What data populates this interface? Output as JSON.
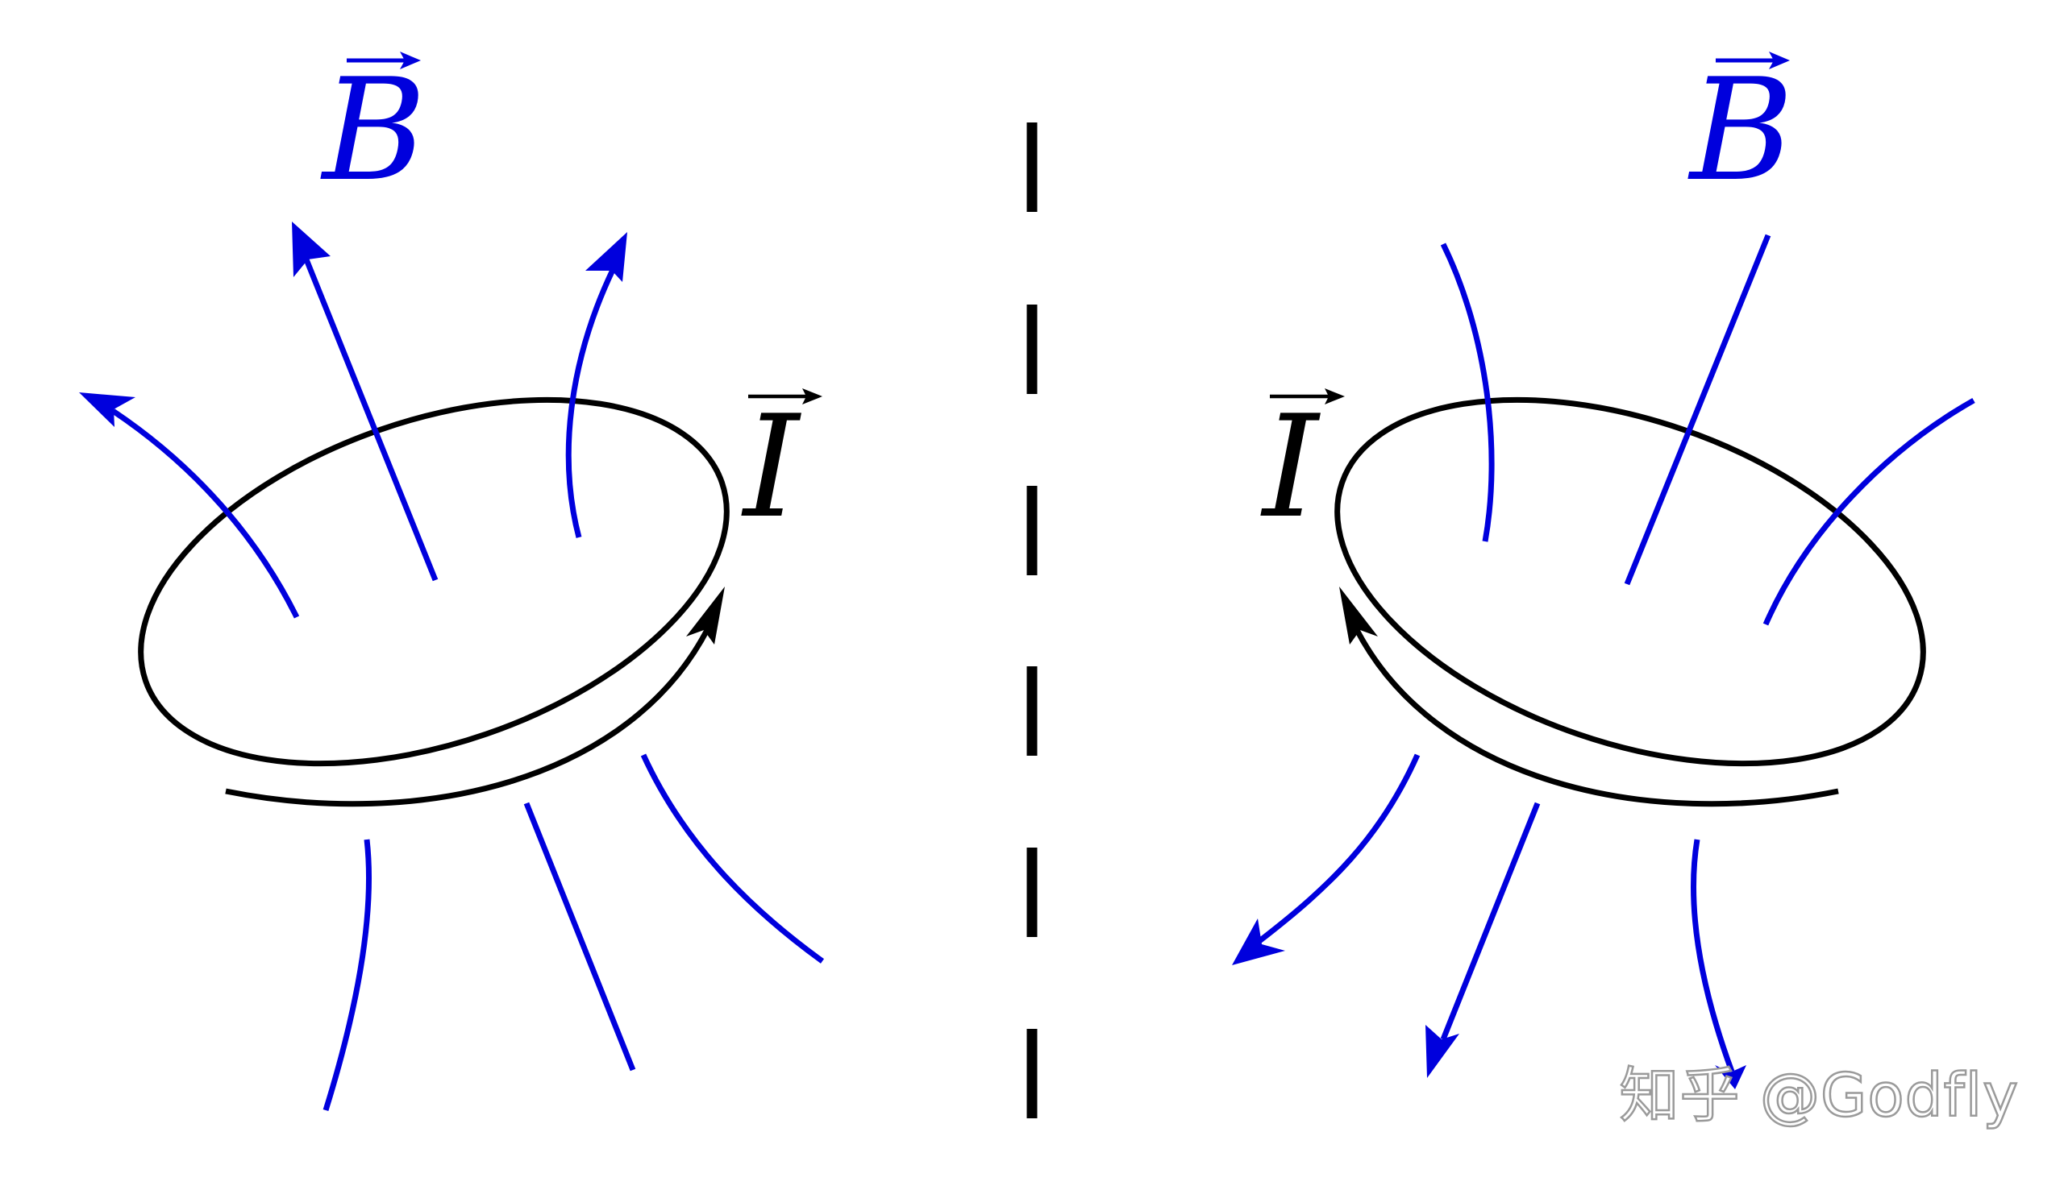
{
  "diagram": {
    "left_panel": {
      "field_label": "B",
      "current_label": "I"
    },
    "right_panel": {
      "field_label": "B",
      "current_label": "I"
    },
    "colors": {
      "field_lines": "#0000dd",
      "loop": "#000000",
      "background": "#ffffff"
    }
  },
  "watermark": {
    "text": "知乎 @Godfly"
  }
}
